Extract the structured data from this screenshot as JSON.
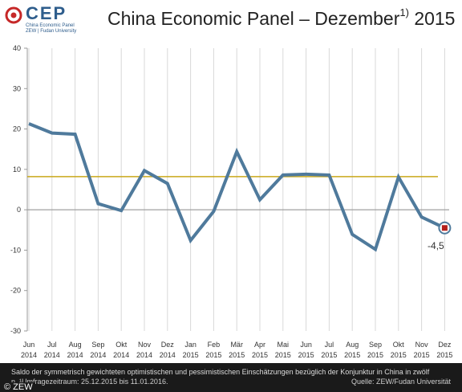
{
  "logo": {
    "name": "CEP",
    "line1": "China Economic Panel",
    "line2": "ZEW | Fudan University"
  },
  "title": {
    "main": "China Economic Panel – Dezember",
    "sup": "1)",
    "year": "2015"
  },
  "footer": {
    "note_line1": "Saldo der symmetrisch gewichteten optimistischen und pessimistischen Einschätzungen bezüglich der Konjunktur in China in zwölf",
    "note_line2": "n. ¹Umfragezeitraum: 25.12.2015 bis 11.01.2016.",
    "source": "Quelle: ZEW/Fudan Universität",
    "copyright": "© ZEW"
  },
  "chart_data": {
    "type": "line",
    "categories": [
      "Jun 2014",
      "Jul 2014",
      "Aug 2014",
      "Sep 2014",
      "Okt 2014",
      "Nov 2014",
      "Dez 2014",
      "Jan 2015",
      "Feb 2015",
      "Mär 2015",
      "Apr 2015",
      "Mai 2015",
      "Jun 2015",
      "Jul 2015",
      "Aug 2015",
      "Sep 2015",
      "Okt 2015",
      "Nov 2015",
      "Dez 2015"
    ],
    "x_month": [
      "Jun",
      "Jul",
      "Aug",
      "Sep",
      "Okt",
      "Nov",
      "Dez",
      "Jan",
      "Feb",
      "Mär",
      "Apr",
      "Mai",
      "Jun",
      "Jul",
      "Aug",
      "Sep",
      "Okt",
      "Nov",
      "Dez"
    ],
    "x_year": [
      "2014",
      "2014",
      "2014",
      "2014",
      "2014",
      "2014",
      "2014",
      "2015",
      "2015",
      "2015",
      "2015",
      "2015",
      "2015",
      "2015",
      "2015",
      "2015",
      "2015",
      "2015",
      "2015"
    ],
    "values": [
      21.3,
      19.0,
      18.7,
      1.5,
      -0.2,
      9.7,
      6.5,
      -7.6,
      -0.4,
      14.4,
      2.5,
      8.6,
      8.8,
      8.6,
      -6.1,
      -9.8,
      8.1,
      -1.8,
      -4.5
    ],
    "ylim": [
      -30,
      40
    ],
    "yticks": [
      "40",
      "30",
      "20",
      "10",
      "0",
      "-10",
      "-20",
      "-30"
    ],
    "reference_line": 8.2,
    "last_label": "-4,5",
    "grid": true,
    "colors": {
      "line": "#4f7a9c",
      "reference": "#c9a81a",
      "zero": "#a0a0a0",
      "grid": "#d8d8d8",
      "marker_outer": "#ffffff",
      "marker_inner": "#b3201c"
    }
  }
}
